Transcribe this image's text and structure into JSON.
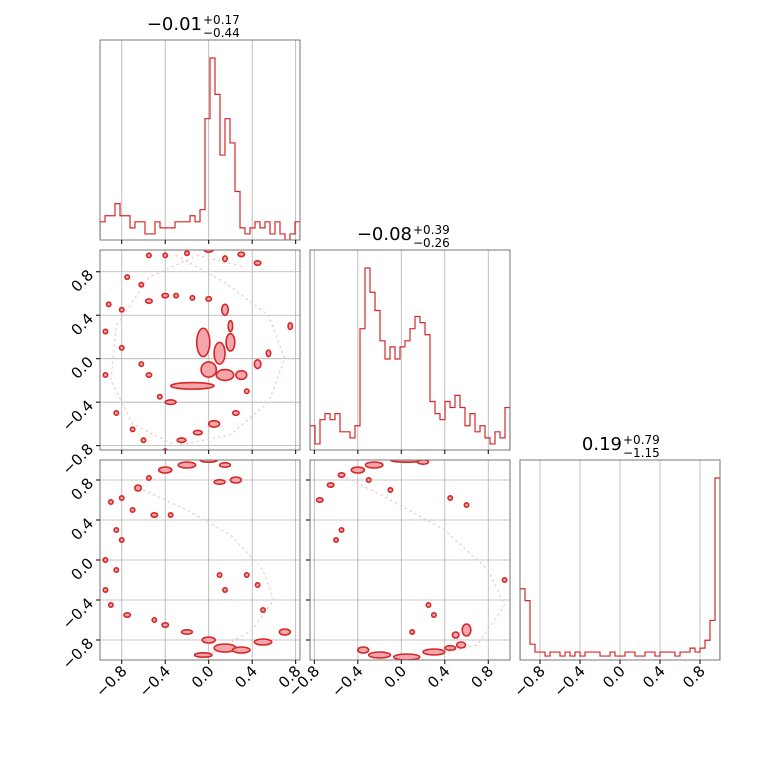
{
  "chart_data": {
    "type": "corner",
    "colors": {
      "line": "#d62728",
      "fill": "#f4a6ac",
      "grid": "#b0b0b0",
      "axes": "#000000"
    },
    "grid": true,
    "ticks": {
      "x_cols_0_1": [
        "−0.8",
        "−0.4",
        "0.0",
        "0.4",
        "0.8"
      ],
      "x_col_2": [
        "−0.8",
        "−0.4",
        "0.0",
        "0.4",
        "0.8"
      ],
      "y_rows": [
        "0.8",
        "0.4",
        "0.0",
        "−0.4",
        "−0.8"
      ]
    },
    "diagonal_titles": [
      {
        "median": "−0.01",
        "plus": "+0.17",
        "minus": "−0.44"
      },
      {
        "median": "−0.08",
        "plus": "+0.39",
        "minus": "−0.26"
      },
      {
        "median": "0.19",
        "plus": "+0.79",
        "minus": "−1.15"
      }
    ],
    "histograms": [
      {
        "param": 0,
        "xlim": [
          -1.0,
          0.84
        ],
        "bins": 40,
        "values": [
          3,
          4,
          4,
          6,
          4,
          4,
          2,
          3,
          3,
          1,
          1,
          3,
          2,
          2,
          2,
          3,
          3,
          3,
          4,
          3,
          5,
          20,
          30,
          24,
          14,
          20,
          16,
          8,
          2,
          1,
          2,
          3,
          2,
          3,
          1,
          3,
          1,
          0,
          1,
          3
        ]
      },
      {
        "param": 1,
        "xlim": [
          -0.84,
          1.0
        ],
        "bins": 40,
        "values": [
          4,
          1,
          5,
          6,
          5,
          6,
          3,
          3,
          2,
          4,
          20,
          30,
          26,
          23,
          18,
          15,
          17,
          15,
          17,
          18,
          20,
          22,
          21,
          19,
          8,
          6,
          5,
          8,
          7,
          9,
          7,
          4,
          6,
          3,
          4,
          2,
          1,
          3,
          2,
          7
        ]
      },
      {
        "param": 2,
        "xlim": [
          -1.0,
          1.0
        ],
        "bins": 40,
        "values": [
          18,
          15,
          4,
          2,
          2,
          1,
          2,
          2,
          1,
          2,
          1,
          2,
          1,
          2,
          2,
          2,
          1,
          1,
          2,
          1,
          1,
          2,
          2,
          1,
          1,
          2,
          2,
          1,
          2,
          2,
          2,
          1,
          2,
          2,
          3,
          2,
          3,
          5,
          10,
          46
        ]
      }
    ],
    "contour_clusters": [
      {
        "panel": "row1_col0",
        "xlim": [
          -1.0,
          0.84
        ],
        "ylim": [
          -0.84,
          1.0
        ],
        "blobs": [
          [
            -0.55,
            0.95,
            0.02,
            0.02
          ],
          [
            -0.4,
            0.95,
            0.02,
            0.02
          ],
          [
            -0.2,
            0.97,
            0.02,
            0.015
          ],
          [
            0.0,
            1.0,
            0.04,
            0.02
          ],
          [
            0.15,
            0.92,
            0.015,
            0.025
          ],
          [
            0.3,
            0.96,
            0.03,
            0.02
          ],
          [
            0.45,
            0.88,
            0.03,
            0.02
          ],
          [
            -0.75,
            0.75,
            0.02,
            0.02
          ],
          [
            -0.62,
            0.68,
            0.02,
            0.02
          ],
          [
            -0.55,
            0.53,
            0.03,
            0.02
          ],
          [
            -0.4,
            0.58,
            0.03,
            0.02
          ],
          [
            -0.3,
            0.58,
            0.02,
            0.02
          ],
          [
            -0.15,
            0.56,
            0.02,
            0.02
          ],
          [
            0.0,
            0.55,
            0.025,
            0.02
          ],
          [
            -0.92,
            0.5,
            0.02,
            0.02
          ],
          [
            -0.8,
            0.45,
            0.02,
            0.02
          ],
          [
            0.15,
            0.45,
            0.03,
            0.05
          ],
          [
            0.2,
            0.3,
            0.02,
            0.05
          ],
          [
            -0.95,
            0.25,
            0.02,
            0.02
          ],
          [
            -0.8,
            0.1,
            0.02,
            0.02
          ],
          [
            -0.62,
            -0.05,
            0.02,
            0.02
          ],
          [
            -0.55,
            -0.15,
            0.025,
            0.02
          ],
          [
            -0.05,
            0.15,
            0.06,
            0.13
          ],
          [
            0.1,
            0.05,
            0.05,
            0.1
          ],
          [
            0.2,
            0.15,
            0.04,
            0.08
          ],
          [
            0.0,
            -0.1,
            0.07,
            0.07
          ],
          [
            0.15,
            -0.15,
            0.08,
            0.05
          ],
          [
            -0.15,
            -0.25,
            0.2,
            0.03
          ],
          [
            0.3,
            -0.15,
            0.05,
            0.04
          ],
          [
            0.45,
            -0.05,
            0.03,
            0.04
          ],
          [
            0.55,
            0.05,
            0.02,
            0.03
          ],
          [
            0.75,
            0.3,
            0.02,
            0.03
          ],
          [
            -0.95,
            -0.15,
            0.02,
            0.02
          ],
          [
            -0.85,
            -0.5,
            0.02,
            0.02
          ],
          [
            -0.7,
            -0.65,
            0.02,
            0.02
          ],
          [
            -0.6,
            -0.75,
            0.02,
            0.02
          ],
          [
            -0.45,
            -0.35,
            0.02,
            0.02
          ],
          [
            -0.35,
            -0.4,
            0.05,
            0.02
          ],
          [
            -0.25,
            -0.75,
            0.04,
            0.02
          ],
          [
            -0.1,
            -0.68,
            0.04,
            0.02
          ],
          [
            0.05,
            -0.6,
            0.05,
            0.03
          ],
          [
            0.25,
            -0.5,
            0.03,
            0.02
          ],
          [
            0.35,
            -0.3,
            0.02,
            0.02
          ],
          [
            -0.4,
            -0.85,
            0.02,
            0.02
          ]
        ]
      },
      {
        "panel": "row2_col0",
        "xlim": [
          -1.0,
          0.84
        ],
        "ylim": [
          -1.0,
          1.0
        ],
        "blobs": [
          [
            -0.4,
            0.9,
            0.06,
            0.03
          ],
          [
            -0.2,
            0.95,
            0.08,
            0.03
          ],
          [
            0.0,
            1.0,
            0.08,
            0.02
          ],
          [
            0.15,
            0.95,
            0.05,
            0.02
          ],
          [
            0.25,
            0.8,
            0.05,
            0.03
          ],
          [
            0.1,
            0.78,
            0.05,
            0.02
          ],
          [
            -0.55,
            0.82,
            0.02,
            0.02
          ],
          [
            -0.65,
            0.72,
            0.03,
            0.03
          ],
          [
            -0.8,
            0.62,
            0.02,
            0.02
          ],
          [
            -0.9,
            0.58,
            0.02,
            0.02
          ],
          [
            -0.7,
            0.5,
            0.02,
            0.02
          ],
          [
            -0.5,
            0.45,
            0.03,
            0.02
          ],
          [
            -0.35,
            0.45,
            0.02,
            0.02
          ],
          [
            -0.85,
            0.3,
            0.02,
            0.02
          ],
          [
            -0.8,
            0.2,
            0.02,
            0.02
          ],
          [
            -0.95,
            0.0,
            0.02,
            0.02
          ],
          [
            -0.85,
            -0.1,
            0.02,
            0.02
          ],
          [
            -0.95,
            -0.3,
            0.02,
            0.02
          ],
          [
            -0.9,
            -0.45,
            0.02,
            0.02
          ],
          [
            -0.75,
            -0.55,
            0.03,
            0.02
          ],
          [
            -0.5,
            -0.6,
            0.02,
            0.02
          ],
          [
            -0.4,
            -0.65,
            0.03,
            0.02
          ],
          [
            -0.2,
            -0.72,
            0.05,
            0.02
          ],
          [
            0.0,
            -0.8,
            0.06,
            0.03
          ],
          [
            0.15,
            -0.88,
            0.1,
            0.04
          ],
          [
            -0.05,
            -0.95,
            0.08,
            0.02
          ],
          [
            0.3,
            -0.9,
            0.08,
            0.03
          ],
          [
            0.5,
            -0.82,
            0.08,
            0.03
          ],
          [
            0.7,
            -0.72,
            0.05,
            0.03
          ],
          [
            0.15,
            -0.3,
            0.02,
            0.02
          ],
          [
            0.35,
            -0.15,
            0.02,
            0.02
          ],
          [
            0.45,
            -0.25,
            0.02,
            0.02
          ],
          [
            0.5,
            -0.5,
            0.02,
            0.02
          ],
          [
            0.1,
            -0.15,
            0.02,
            0.02
          ]
        ]
      },
      {
        "panel": "row2_col1",
        "xlim": [
          -0.84,
          1.0
        ],
        "ylim": [
          -1.0,
          1.0
        ],
        "blobs": [
          [
            -0.4,
            0.9,
            0.06,
            0.03
          ],
          [
            -0.25,
            0.95,
            0.08,
            0.03
          ],
          [
            0.05,
            1.0,
            0.15,
            0.02
          ],
          [
            0.2,
            0.98,
            0.05,
            0.02
          ],
          [
            -0.55,
            0.85,
            0.03,
            0.02
          ],
          [
            -0.65,
            0.75,
            0.03,
            0.02
          ],
          [
            -0.75,
            0.6,
            0.03,
            0.02
          ],
          [
            -0.3,
            0.8,
            0.02,
            0.02
          ],
          [
            -0.1,
            0.7,
            0.02,
            0.02
          ],
          [
            0.45,
            0.62,
            0.02,
            0.02
          ],
          [
            0.6,
            0.55,
            0.02,
            0.02
          ],
          [
            -0.6,
            0.2,
            0.02,
            0.02
          ],
          [
            -0.55,
            0.3,
            0.02,
            0.02
          ],
          [
            0.95,
            -0.2,
            0.02,
            0.02
          ],
          [
            0.25,
            -0.45,
            0.02,
            0.02
          ],
          [
            0.3,
            -0.55,
            0.02,
            0.02
          ],
          [
            0.5,
            -0.75,
            0.03,
            0.03
          ],
          [
            0.6,
            -0.7,
            0.04,
            0.06
          ],
          [
            0.55,
            -0.85,
            0.04,
            0.03
          ],
          [
            0.1,
            -0.72,
            0.02,
            0.02
          ],
          [
            -0.35,
            -0.9,
            0.05,
            0.03
          ],
          [
            -0.2,
            -0.95,
            0.1,
            0.03
          ],
          [
            0.05,
            -0.97,
            0.12,
            0.03
          ],
          [
            0.3,
            -0.92,
            0.1,
            0.03
          ],
          [
            0.45,
            -0.88,
            0.05,
            0.02
          ]
        ]
      }
    ],
    "scatter_trails": [
      {
        "panel": "row1_col0",
        "path": [
          [
            -0.3,
            0.95
          ],
          [
            0.15,
            0.7
          ],
          [
            0.55,
            0.4
          ],
          [
            0.7,
            0.0
          ],
          [
            0.55,
            -0.4
          ],
          [
            0.2,
            -0.7
          ],
          [
            -0.3,
            -0.8
          ],
          [
            -0.7,
            -0.6
          ],
          [
            -0.9,
            -0.2
          ],
          [
            -0.85,
            0.3
          ],
          [
            -0.55,
            0.75
          ],
          [
            -0.1,
            0.95
          ],
          [
            0.3,
            0.85
          ]
        ]
      },
      {
        "panel": "row2_col0",
        "path": [
          [
            -0.6,
            0.7
          ],
          [
            -0.2,
            0.5
          ],
          [
            0.2,
            0.25
          ],
          [
            0.5,
            -0.1
          ],
          [
            0.6,
            -0.4
          ],
          [
            0.4,
            -0.7
          ],
          [
            0.0,
            -0.95
          ]
        ]
      },
      {
        "panel": "row2_col1",
        "path": [
          [
            -0.55,
            0.85
          ],
          [
            -0.1,
            0.6
          ],
          [
            0.4,
            0.3
          ],
          [
            0.8,
            -0.1
          ],
          [
            0.95,
            -0.45
          ],
          [
            0.7,
            -0.85
          ],
          [
            0.3,
            -0.95
          ]
        ]
      }
    ]
  }
}
